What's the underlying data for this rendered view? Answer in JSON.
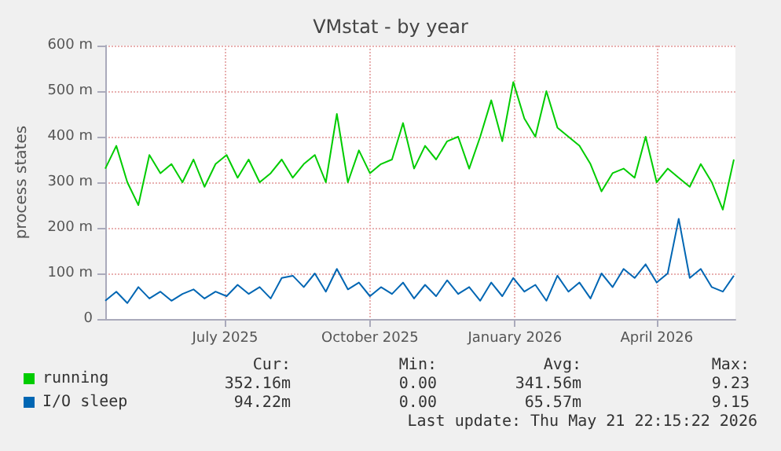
{
  "chart_data": {
    "type": "line",
    "title": "VMstat - by year",
    "ylabel": "process states",
    "x": [
      "2025-04-16",
      "2025-04-23",
      "2025-04-30",
      "2025-05-07",
      "2025-05-14",
      "2025-05-21",
      "2025-05-28",
      "2025-06-04",
      "2025-06-11",
      "2025-06-18",
      "2025-06-25",
      "2025-07-02",
      "2025-07-09",
      "2025-07-16",
      "2025-07-23",
      "2025-07-30",
      "2025-08-06",
      "2025-08-13",
      "2025-08-20",
      "2025-08-27",
      "2025-09-03",
      "2025-09-10",
      "2025-09-17",
      "2025-09-24",
      "2025-10-01",
      "2025-10-08",
      "2025-10-15",
      "2025-10-22",
      "2025-10-29",
      "2025-11-05",
      "2025-11-12",
      "2025-11-19",
      "2025-11-26",
      "2025-12-03",
      "2025-12-10",
      "2025-12-17",
      "2025-12-24",
      "2025-12-31",
      "2026-01-07",
      "2026-01-14",
      "2026-01-21",
      "2026-01-28",
      "2026-02-04",
      "2026-02-11",
      "2026-02-18",
      "2026-02-25",
      "2026-03-04",
      "2026-03-11",
      "2026-03-18",
      "2026-03-25",
      "2026-04-01",
      "2026-04-08",
      "2026-04-15",
      "2026-04-22",
      "2026-04-29",
      "2026-05-06",
      "2026-05-13",
      "2026-05-20"
    ],
    "series": [
      {
        "name": "running",
        "color": "#00cc00",
        "values": [
          330,
          380,
          300,
          250,
          360,
          320,
          340,
          300,
          350,
          290,
          340,
          360,
          310,
          350,
          300,
          320,
          350,
          310,
          340,
          360,
          300,
          450,
          300,
          370,
          320,
          340,
          350,
          430,
          330,
          380,
          350,
          390,
          400,
          330,
          400,
          480,
          390,
          520,
          440,
          400,
          500,
          420,
          400,
          380,
          340,
          280,
          320,
          330,
          310,
          400,
          300,
          330,
          310,
          290,
          340,
          300,
          240,
          350
        ]
      },
      {
        "name": "I/O sleep",
        "color": "#0066b3",
        "values": [
          40,
          60,
          35,
          70,
          45,
          60,
          40,
          55,
          65,
          45,
          60,
          50,
          75,
          55,
          70,
          45,
          90,
          95,
          70,
          100,
          60,
          110,
          65,
          80,
          50,
          70,
          55,
          80,
          45,
          75,
          50,
          85,
          55,
          70,
          40,
          80,
          50,
          90,
          60,
          75,
          40,
          95,
          60,
          80,
          45,
          100,
          70,
          110,
          90,
          120,
          80,
          100,
          220,
          90,
          110,
          70,
          60,
          95
        ]
      }
    ],
    "xlim": [
      "2025-04-16",
      "2026-05-21"
    ],
    "xticks": [
      {
        "value": "2025-07-01",
        "label": "July 2025"
      },
      {
        "value": "2025-10-01",
        "label": "October 2025"
      },
      {
        "value": "2026-01-01",
        "label": "January 2026"
      },
      {
        "value": "2026-04-01",
        "label": "April 2026"
      }
    ],
    "ylim": [
      0,
      600
    ],
    "yticks": [
      0,
      {
        "value": 100,
        "label": "100 m"
      },
      {
        "value": 200,
        "label": "200 m"
      },
      {
        "value": 300,
        "label": "300 m"
      },
      {
        "value": 400,
        "label": "400 m"
      },
      {
        "value": 500,
        "label": "500 m"
      },
      {
        "value": 600,
        "label": "600 m"
      }
    ],
    "grid": true,
    "legend": "bottom left",
    "marker": "none",
    "line_style": "solid",
    "annotations": [
      "Cur:",
      "Min:",
      "Avg:",
      "Max:",
      "352.16m",
      "0.00",
      "341.56m",
      "9.23",
      "94.22m",
      "0.00",
      "65.57m",
      "9.15",
      "Last update: Thu May 21 22:15:22 2026"
    ]
  }
}
